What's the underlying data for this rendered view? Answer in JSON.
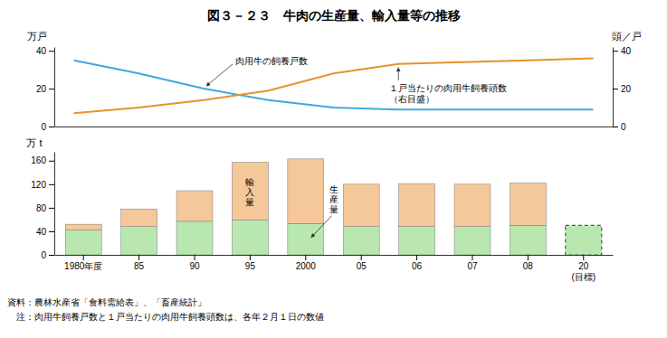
{
  "chart_data": [
    {
      "type": "line",
      "title": "図３－２３　牛肉の生産量、輸入量等の推移",
      "x": [
        0,
        1,
        2,
        3,
        4,
        5,
        6,
        7,
        8
      ],
      "xlim": [
        -0.3,
        8.3
      ],
      "xticks": [],
      "tick_labels": "y",
      "ylabel": "万戸",
      "y2label": "頭／戸",
      "ylim": [
        0,
        42
      ],
      "yticks": [
        0,
        20,
        40
      ],
      "y2lim": [
        0,
        42
      ],
      "y2ticks": [
        0,
        20,
        40
      ],
      "series": [
        {
          "color": "#3fa8e0",
          "values": [
            35,
            28,
            20,
            14,
            10,
            9,
            9,
            9,
            9
          ]
        },
        {
          "color": "#e8922a",
          "axis": "y2",
          "values": [
            7,
            10,
            14,
            19,
            28,
            33,
            34,
            35,
            36
          ]
        }
      ],
      "annotations": [
        "肉用牛の飼養戸数",
        "１戸当たりの肉用牛飼養頭数\n（右目盛）"
      ]
    },
    {
      "type": "bar",
      "stacked": true,
      "categories": [
        "1980年度",
        "85",
        "90",
        "95",
        "2000",
        "05",
        "06",
        "07",
        "08",
        "20\n(目標)"
      ],
      "ylabel": "万 t",
      "ylim": [
        0,
        175
      ],
      "yticks": [
        0,
        40,
        80,
        120,
        160
      ],
      "series": [
        {
          "color": "#b8e8b0",
          "values": [
            42,
            48,
            57,
            59,
            53,
            48,
            48,
            48,
            50,
            50
          ]
        },
        {
          "color": "#f5c89a",
          "values": [
            10,
            30,
            52,
            98,
            110,
            72,
            73,
            72,
            72,
            0
          ]
        }
      ],
      "annotations": [
        "生\n産\n量",
        "輸\n入\n量",
        "資料：農林水産省「食料需給表」、「畜産統計」",
        "　注：肉用牛飼養戸数と１戸当たりの肉用牛飼養頭数は、各年２月１日の数値"
      ]
    }
  ]
}
